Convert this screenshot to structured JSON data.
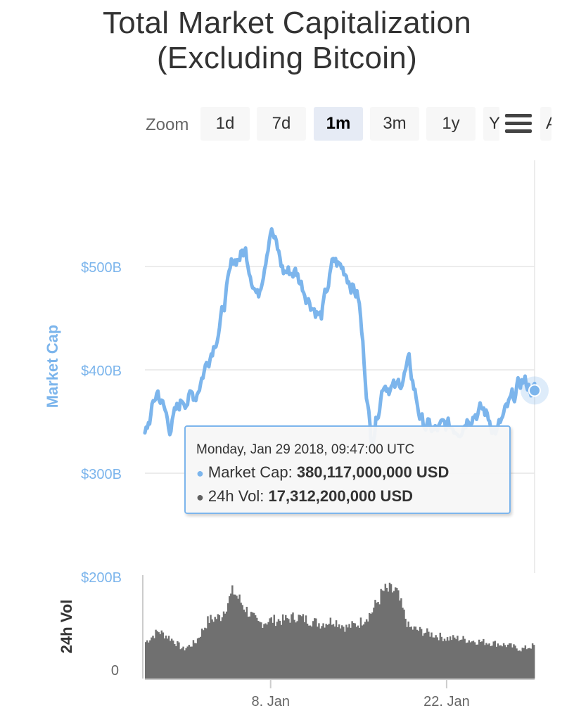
{
  "title_line1": "Total Market Capitalization",
  "title_line2": "(Excluding Bitcoin)",
  "zoom": {
    "label": "Zoom",
    "buttons": [
      "1d",
      "7d",
      "1m",
      "3m",
      "1y",
      "Y",
      "A"
    ],
    "active": "1m"
  },
  "tooltip": {
    "header": "Monday, Jan 29 2018, 09:47:00 UTC",
    "series1_name": "Market Cap:",
    "series1_value": "380,117,000,000 USD",
    "series2_name": "24h Vol:",
    "series2_value": "17,312,200,000 USD"
  },
  "colors": {
    "market_cap": "#7cb5ec",
    "volume": "#707070",
    "axis_text": "#666666"
  },
  "chart_data": {
    "type": "line",
    "xlabel": "",
    "ylabel": "Market Cap",
    "ylim": [
      200,
      550
    ],
    "yticks": [
      "$200B",
      "$300B",
      "$400B",
      "$500B"
    ],
    "xticks": [
      "8. Jan",
      "22. Jan"
    ],
    "x_range": [
      "2017-12-29",
      "2018-01-29"
    ],
    "series": [
      {
        "name": "Market Cap",
        "y_unit": "billion USD",
        "x": [
          "2017-12-29",
          "2017-12-30",
          "2017-12-31",
          "2018-01-01",
          "2018-01-02",
          "2018-01-03",
          "2018-01-04",
          "2018-01-05",
          "2018-01-06",
          "2018-01-07",
          "2018-01-08",
          "2018-01-09",
          "2018-01-10",
          "2018-01-11",
          "2018-01-12",
          "2018-01-13",
          "2018-01-14",
          "2018-01-15",
          "2018-01-16",
          "2018-01-17",
          "2018-01-18",
          "2018-01-19",
          "2018-01-20",
          "2018-01-21",
          "2018-01-22",
          "2018-01-23",
          "2018-01-24",
          "2018-01-25",
          "2018-01-26",
          "2018-01-27",
          "2018-01-28",
          "2018-01-29"
        ],
        "values": [
          335,
          380,
          345,
          372,
          375,
          410,
          445,
          505,
          515,
          470,
          540,
          495,
          495,
          470,
          450,
          505,
          495,
          470,
          330,
          390,
          380,
          405,
          350,
          340,
          345,
          345,
          360,
          360,
          340,
          365,
          390,
          380
        ]
      },
      {
        "name": "24h Vol",
        "y_unit": "relative",
        "ylabel": "24h Vol",
        "yticks": [
          "0"
        ],
        "x": [
          "2017-12-29",
          "2017-12-30",
          "2017-12-31",
          "2018-01-01",
          "2018-01-02",
          "2018-01-03",
          "2018-01-04",
          "2018-01-05",
          "2018-01-06",
          "2018-01-07",
          "2018-01-08",
          "2018-01-09",
          "2018-01-10",
          "2018-01-11",
          "2018-01-12",
          "2018-01-13",
          "2018-01-14",
          "2018-01-15",
          "2018-01-16",
          "2018-01-17",
          "2018-01-18",
          "2018-01-19",
          "2018-01-20",
          "2018-01-21",
          "2018-01-22",
          "2018-01-23",
          "2018-01-24",
          "2018-01-25",
          "2018-01-26",
          "2018-01-27",
          "2018-01-28",
          "2018-01-29"
        ],
        "values": [
          50,
          65,
          55,
          40,
          50,
          80,
          85,
          120,
          95,
          75,
          80,
          80,
          85,
          80,
          75,
          80,
          70,
          75,
          90,
          120,
          120,
          70,
          65,
          60,
          55,
          55,
          52,
          50,
          48,
          45,
          40,
          45
        ]
      }
    ]
  }
}
